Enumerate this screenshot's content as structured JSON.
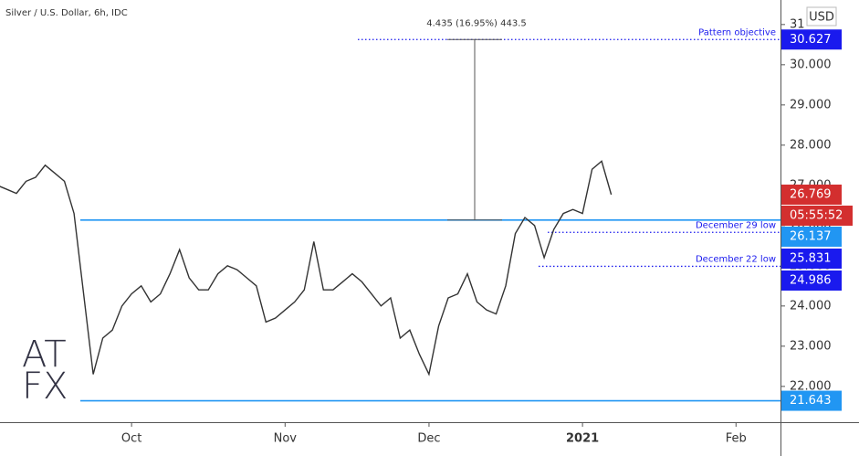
{
  "chart_data": {
    "type": "line",
    "title": "Silver / U.S. Dollar, 6h, IDC",
    "currency": "USD",
    "logo": [
      "AT",
      "FX"
    ],
    "color": "#333333",
    "categories": [
      null,
      null,
      null,
      null,
      null,
      null,
      null,
      null,
      null,
      null,
      null,
      null,
      null,
      null,
      "Oct",
      null,
      null,
      null,
      null,
      null,
      null,
      null,
      null,
      null,
      null,
      null,
      null,
      null,
      null,
      null,
      "Nov",
      null,
      null,
      null,
      null,
      null,
      null,
      null,
      null,
      null,
      null,
      null,
      null,
      null,
      null,
      "Dec",
      null,
      null,
      null,
      null,
      null,
      null,
      null,
      null,
      null,
      null,
      null,
      null,
      null,
      null,
      null,
      "2021",
      null,
      null,
      null,
      null,
      null,
      null,
      null,
      null,
      null,
      null,
      null,
      null,
      null,
      null,
      null,
      "Feb"
    ],
    "values": [
      27.0,
      26.9,
      26.8,
      27.1,
      27.2,
      27.5,
      27.3,
      27.1,
      26.3,
      24.3,
      22.3,
      23.2,
      23.4,
      24.0,
      24.3,
      24.5,
      24.1,
      24.3,
      24.8,
      25.4,
      24.7,
      24.4,
      24.4,
      24.8,
      25.0,
      24.9,
      24.7,
      24.5,
      23.6,
      23.7,
      23.9,
      24.1,
      24.4,
      25.6,
      24.4,
      24.4,
      24.6,
      24.8,
      24.6,
      24.3,
      24.0,
      24.2,
      23.2,
      23.4,
      22.8,
      22.3,
      23.5,
      24.2,
      24.3,
      24.8,
      24.1,
      23.9,
      23.8,
      24.5,
      25.8,
      26.2,
      26.0,
      25.2,
      25.9,
      26.3,
      26.4,
      26.3,
      27.4,
      27.6,
      26.769,
      null,
      null,
      null,
      null,
      null,
      null,
      null,
      null,
      null,
      null,
      null,
      null,
      null
    ],
    "ylim": [
      21.11,
      31.61
    ],
    "yticks": [
      {
        "value": 22,
        "label": "22.000"
      },
      {
        "value": 23,
        "label": "23.000"
      },
      {
        "value": 24,
        "label": "24.000"
      },
      {
        "value": 25,
        "label": "25.000"
      },
      {
        "value": 26,
        "label": "26.000"
      },
      {
        "value": 27,
        "label": "27.000"
      },
      {
        "value": 28,
        "label": "28.000"
      },
      {
        "value": 29,
        "label": "29.000"
      },
      {
        "value": 30,
        "label": "30.000"
      },
      31
    ],
    "levels": [
      {
        "value": 30.627,
        "text": "Pattern objective",
        "style": "dotted",
        "color": "#1a1aee"
      },
      {
        "value": 26.137,
        "style": "solid",
        "color": "#2196f3"
      },
      {
        "value": 25.831,
        "text": "December 29 low",
        "style": "dotted",
        "color": "#1a1aee"
      },
      {
        "value": 24.986,
        "text": "December 22 low",
        "style": "dotted",
        "color": "#1a1aee"
      },
      {
        "value": 21.643,
        "style": "solid",
        "color": "#2196f3"
      }
    ],
    "last": {
      "value": 26.769,
      "timer": "05:55:52",
      "color": "#d32f2f"
    },
    "measure": "4.435 (16.95%) 443.5"
  }
}
